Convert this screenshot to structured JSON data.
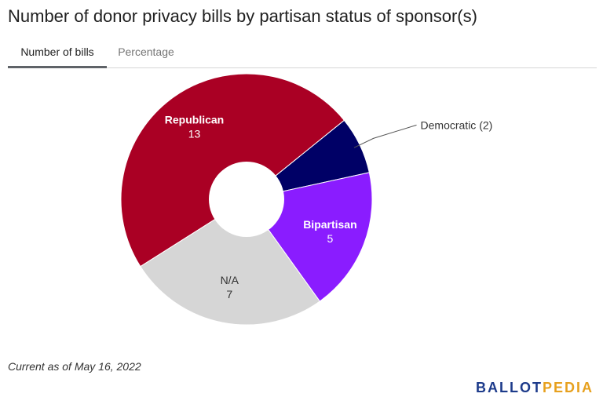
{
  "title": "Number of donor privacy bills by partisan status of sponsor(s)",
  "tabs": [
    {
      "label": "Number of bills",
      "active": true
    },
    {
      "label": "Percentage",
      "active": false
    }
  ],
  "footnote": "Current as of May 16, 2022",
  "logo": {
    "part1": "BALLOT",
    "part2": "PEDIA",
    "color1": "#1d3b8b",
    "color2": "#e7a11f"
  },
  "chart_data": {
    "type": "pie",
    "donut": true,
    "start_angle_degrees": 51,
    "slices": [
      {
        "label": "Democratic",
        "value": 2,
        "color": "#000066",
        "label_text": "Democratic (2)",
        "label_style": "external"
      },
      {
        "label": "Bipartisan",
        "value": 5,
        "color": "#8a1cff",
        "label_text": "Bipartisan",
        "value_text": "5",
        "label_style": "internal-white"
      },
      {
        "label": "N/A",
        "value": 7,
        "color": "#d6d6d6",
        "label_text": "N/A",
        "value_text": "7",
        "label_style": "internal-dark"
      },
      {
        "label": "Republican",
        "value": 13,
        "color": "#aa0024",
        "label_text": "Republican",
        "value_text": "13",
        "label_style": "internal-white"
      }
    ]
  }
}
